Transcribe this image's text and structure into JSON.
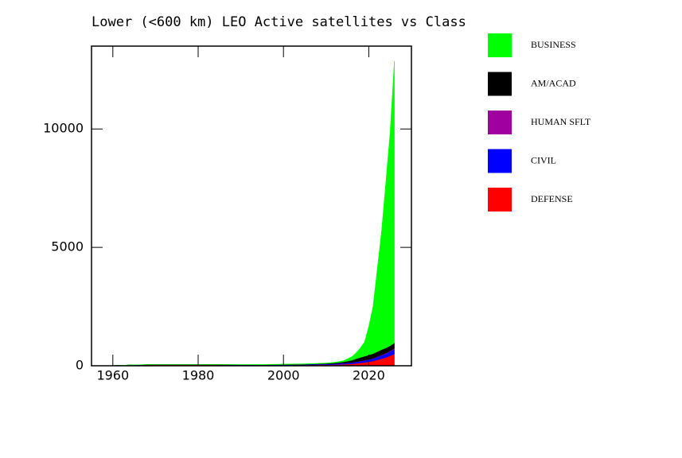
{
  "chart_data": {
    "type": "stacked_area",
    "title": "Lower (<600 km) LEO Active satellites vs Class",
    "x": [
      1960,
      1965,
      1970,
      1975,
      1980,
      1985,
      1990,
      1995,
      2000,
      2005,
      2010,
      2012,
      2014,
      2015,
      2016,
      2017,
      2018,
      2019,
      2020,
      2021,
      2022,
      2023,
      2024,
      2025,
      2026
    ],
    "series": [
      {
        "name": "DEFENSE",
        "color": "#ff0000",
        "values": [
          5,
          30,
          40,
          40,
          40,
          35,
          30,
          25,
          25,
          30,
          40,
          50,
          60,
          70,
          80,
          100,
          120,
          140,
          170,
          200,
          250,
          300,
          350,
          420,
          500
        ]
      },
      {
        "name": "CIVIL",
        "color": "#0000ff",
        "values": [
          2,
          5,
          10,
          10,
          10,
          10,
          10,
          10,
          15,
          20,
          30,
          35,
          40,
          45,
          50,
          60,
          70,
          80,
          90,
          100,
          120,
          140,
          160,
          180,
          200
        ]
      },
      {
        "name": "HUMAN SFLT",
        "color": "#a000a0",
        "values": [
          0,
          2,
          3,
          2,
          3,
          3,
          2,
          3,
          5,
          5,
          5,
          5,
          10,
          10,
          10,
          10,
          10,
          10,
          10,
          10,
          15,
          20,
          20,
          25,
          30
        ]
      },
      {
        "name": "AM/ACAD",
        "color": "#000000",
        "values": [
          0,
          0,
          2,
          2,
          2,
          2,
          3,
          5,
          5,
          10,
          20,
          30,
          50,
          70,
          90,
          120,
          150,
          170,
          190,
          200,
          210,
          220,
          220,
          220,
          230
        ]
      },
      {
        "name": "BUSINESS",
        "color": "#00ff00",
        "values": [
          0,
          0,
          0,
          0,
          0,
          0,
          5,
          10,
          20,
          20,
          20,
          30,
          50,
          100,
          150,
          250,
          400,
          600,
          1200,
          2000,
          3500,
          5000,
          7000,
          9000,
          11900
        ]
      }
    ],
    "xlim": [
      1955,
      2030
    ],
    "ylim": [
      0,
      13500
    ],
    "xticks": [
      1960,
      1980,
      2000,
      2020
    ],
    "yticks": [
      0,
      5000,
      10000
    ]
  }
}
